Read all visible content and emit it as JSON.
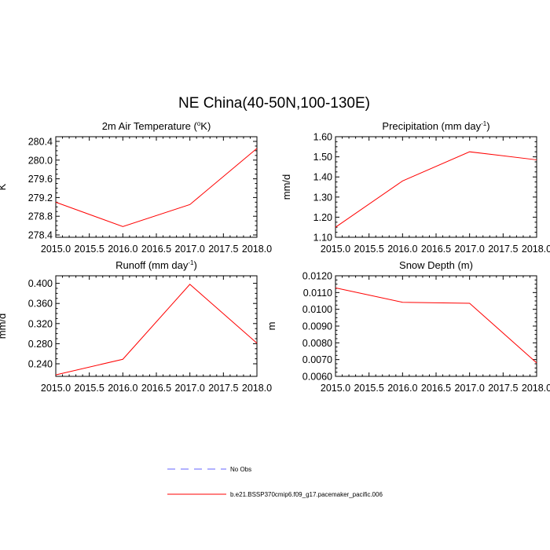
{
  "title": "NE China(40-50N,100-130E)",
  "series_color": "#ff0000",
  "obs_color": "#6666ff",
  "chart_data": [
    {
      "type": "line",
      "title": "2m Air Temperature (",
      "title_sup": "o",
      "title_tail": "K)",
      "ylabel": "K",
      "xlim": [
        2015.0,
        2018.0
      ],
      "xticks": [
        2015.0,
        2015.5,
        2016.0,
        2016.5,
        2017.0,
        2017.5,
        2018.0
      ],
      "xtick_labels": [
        "2015.0",
        "2015.5",
        "2016.0",
        "2016.5",
        "2017.0",
        "2017.5",
        "2018.0"
      ],
      "ylim": [
        278.35,
        280.5
      ],
      "yticks": [
        278.4,
        278.8,
        279.2,
        279.6,
        280.0,
        280.4
      ],
      "ytick_labels": [
        "278.4",
        "278.8",
        "279.2",
        "279.6",
        "280.0",
        "280.4"
      ],
      "x": [
        2015.0,
        2016.0,
        2017.0,
        2018.0
      ],
      "values": [
        279.1,
        278.58,
        279.05,
        280.25
      ]
    },
    {
      "type": "line",
      "title": "Precipitation (mm day",
      "title_sup": "-1",
      "title_tail": ")",
      "ylabel": "mm/d",
      "xlim": [
        2015.0,
        2018.0
      ],
      "xticks": [
        2015.0,
        2015.5,
        2016.0,
        2016.5,
        2017.0,
        2017.5,
        2018.0
      ],
      "xtick_labels": [
        "2015.0",
        "2015.5",
        "2016.0",
        "2016.5",
        "2017.0",
        "2017.5",
        "2018.0"
      ],
      "ylim": [
        1.1,
        1.6
      ],
      "yticks": [
        1.1,
        1.2,
        1.3,
        1.4,
        1.5,
        1.6
      ],
      "ytick_labels": [
        "1.10",
        "1.20",
        "1.30",
        "1.40",
        "1.50",
        "1.60"
      ],
      "x": [
        2015.0,
        2016.0,
        2017.0,
        2018.0
      ],
      "values": [
        1.15,
        1.38,
        1.525,
        1.485
      ]
    },
    {
      "type": "line",
      "title": "Runoff (mm day",
      "title_sup": "-1",
      "title_tail": ")",
      "ylabel": "mm/d",
      "xlim": [
        2015.0,
        2018.0
      ],
      "xticks": [
        2015.0,
        2015.5,
        2016.0,
        2016.5,
        2017.0,
        2017.5,
        2018.0
      ],
      "xtick_labels": [
        "2015.0",
        "2015.5",
        "2016.0",
        "2016.5",
        "2017.0",
        "2017.5",
        "2018.0"
      ],
      "ylim": [
        0.215,
        0.415
      ],
      "yticks": [
        0.24,
        0.28,
        0.32,
        0.36,
        0.4
      ],
      "ytick_labels": [
        "0.240",
        "0.280",
        "0.320",
        "0.360",
        "0.400"
      ],
      "x": [
        2015.0,
        2016.0,
        2017.0,
        2018.0
      ],
      "values": [
        0.218,
        0.249,
        0.398,
        0.281
      ]
    },
    {
      "type": "line",
      "title": "Snow Depth (m)",
      "title_sup": "",
      "title_tail": "",
      "ylabel": "m",
      "xlim": [
        2015.0,
        2018.0
      ],
      "xticks": [
        2015.0,
        2015.5,
        2016.0,
        2016.5,
        2017.0,
        2017.5,
        2018.0
      ],
      "xtick_labels": [
        "2015.0",
        "2015.5",
        "2016.0",
        "2016.5",
        "2017.0",
        "2017.5",
        "2018.0"
      ],
      "ylim": [
        0.006,
        0.012
      ],
      "yticks": [
        0.006,
        0.007,
        0.008,
        0.009,
        0.01,
        0.011,
        0.012
      ],
      "ytick_labels": [
        "0.0060",
        "0.0070",
        "0.0080",
        "0.0090",
        "0.0100",
        "0.0110",
        "0.0120"
      ],
      "x": [
        2015.0,
        2016.0,
        2017.0,
        2018.0
      ],
      "values": [
        0.01128,
        0.01042,
        0.01036,
        0.0068
      ]
    }
  ],
  "legend": [
    {
      "label": "No Obs",
      "style": "dashed",
      "color": "#6666ff"
    },
    {
      "label": "b.e21.BSSP370cmip6.f09_g17.pacemaker_pacific.006",
      "style": "solid",
      "color": "#ff0000"
    }
  ]
}
